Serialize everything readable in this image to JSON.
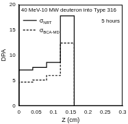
{
  "chart_data": {
    "type": "line",
    "title": "40 MeV-10 MW deuteron into Type 316",
    "annotation": "5 hours",
    "x_label": "Z (cm)",
    "y_label": "DPA",
    "x": [
      0,
      0.04,
      0.08,
      0.12,
      0.16,
      0.2,
      0.3
    ],
    "series": [
      {
        "name": "σNRT",
        "color": "#000000",
        "line_style": "solid",
        "values": [
          6.8,
          7.1,
          7.6,
          8.6,
          17.8,
          0,
          0
        ]
      },
      {
        "name": "σBCA-MD",
        "color": "#000000",
        "line_style": "dashed",
        "values": [
          4.4,
          4.7,
          5.1,
          6.0,
          12.4,
          0,
          0
        ]
      }
    ],
    "xlim": [
      0,
      0.3
    ],
    "xticks": [
      0,
      0.05,
      0.1,
      0.15,
      0.2,
      0.25,
      0.3
    ],
    "ylim": [
      0,
      20
    ],
    "yticks": [
      0,
      5,
      10,
      15,
      20
    ],
    "grid": false,
    "legend": "upper left"
  }
}
